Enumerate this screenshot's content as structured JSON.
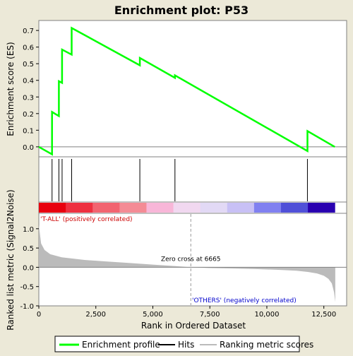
{
  "chart_data": {
    "type": "line",
    "title": "Enrichment plot: P53",
    "xlabel": "Rank in Ordered Dataset",
    "top_ylabel": "Enrichment score (ES)",
    "bottom_ylabel": "Ranked list metric (Signal2Noise)",
    "xlim": [
      0,
      13500
    ],
    "x_ticks": [
      0,
      2500,
      5000,
      7500,
      10000,
      12500
    ],
    "x_tick_labels": [
      "0",
      "2,500",
      "5,000",
      "7,500",
      "10,000",
      "12,500"
    ],
    "es_ylim": [
      -0.06,
      0.76
    ],
    "es_ticks": [
      0.0,
      0.1,
      0.2,
      0.3,
      0.4,
      0.5,
      0.6,
      0.7
    ],
    "es_tick_labels": [
      "0.0",
      "0.1",
      "0.2",
      "0.3",
      "0.4",
      "0.5",
      "0.6",
      "0.7"
    ],
    "metric_ylim": [
      -1.0,
      1.4
    ],
    "metric_ticks": [
      1.0,
      0.5,
      0.0,
      -0.5,
      -1.0
    ],
    "metric_tick_labels": [
      "1.0",
      "0.5",
      "0.0",
      "-0.5",
      "-1.0"
    ],
    "enrichment_profile": {
      "x": [
        0,
        580,
        580,
        880,
        880,
        1020,
        1020,
        1440,
        1440,
        4430,
        4430,
        5970,
        5970,
        11780,
        11780,
        12980
      ],
      "y": [
        0.0,
        -0.045,
        0.21,
        0.185,
        0.395,
        0.385,
        0.585,
        0.555,
        0.715,
        0.49,
        0.535,
        0.415,
        0.43,
        -0.025,
        0.095,
        0.0
      ]
    },
    "hits": [
      580,
      880,
      1020,
      1440,
      4430,
      5970,
      11780
    ],
    "ranking_metric": {
      "x": [
        0,
        100,
        250,
        500,
        1000,
        2000,
        3000,
        4000,
        5000,
        6000,
        6665,
        7500,
        8500,
        9500,
        10500,
        11300,
        11800,
        12200,
        12500,
        12700,
        12850,
        12950,
        13000
      ],
      "y": [
        1.1,
        0.62,
        0.45,
        0.34,
        0.26,
        0.19,
        0.15,
        0.11,
        0.07,
        0.03,
        0.0,
        -0.02,
        -0.03,
        -0.045,
        -0.065,
        -0.09,
        -0.12,
        -0.16,
        -0.22,
        -0.3,
        -0.42,
        -0.65,
        -0.9
      ]
    },
    "zero_cross": 6665,
    "zero_cross_label": "Zero cross at 6665",
    "pos_label": "'T-ALL' (positively correlated)",
    "neg_label": "'OTHERS' (negatively correlated)",
    "heatmap_colors": [
      "#e8000f",
      "#ee3040",
      "#f26470",
      "#f48b95",
      "#f8b6d8",
      "#f1d8f0",
      "#e2d9f5",
      "#c8c0f5",
      "#8080f0",
      "#5050d8",
      "#2a00b0"
    ],
    "legend": [
      "Enrichment profile",
      "Hits",
      "Ranking metric scores"
    ],
    "colors": {
      "profile": "#00ff00",
      "hit": "#000000",
      "metric_fill": "#bbbbbb",
      "zero_line": "#808080",
      "pos_label": "#cc0000",
      "neg_label": "#0000cc"
    }
  }
}
